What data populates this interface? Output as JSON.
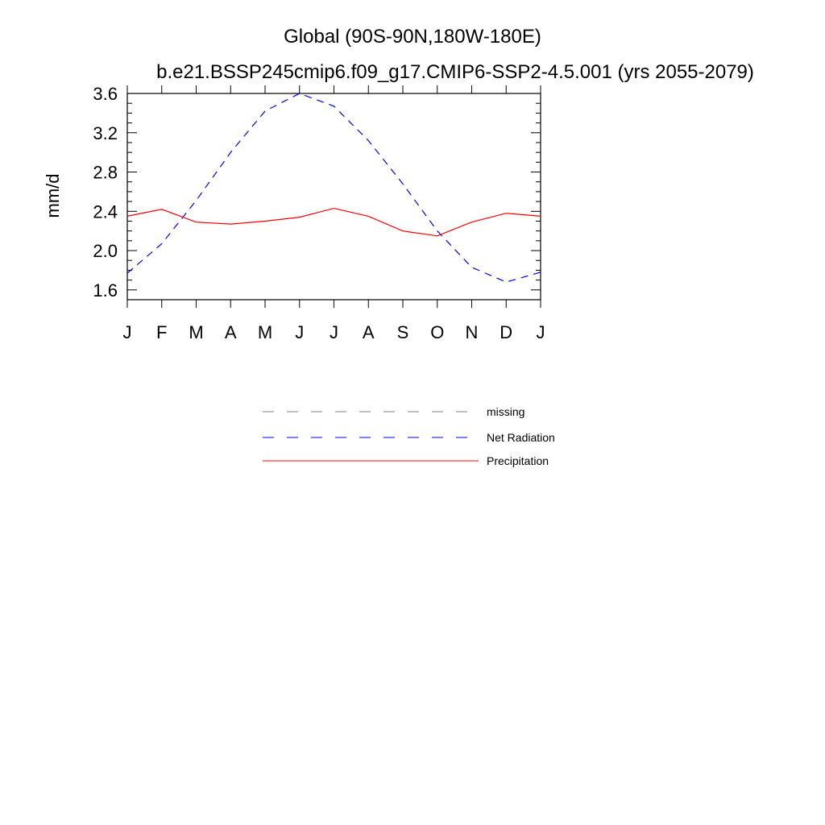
{
  "chart_data": {
    "type": "line",
    "title": "Global (90S-90N,180W-180E)",
    "subtitle": "b.e21.BSSP245cmip6.f09_g17.CMIP6-SSP2-4.5.001 (yrs 2055-2079)",
    "xlabel": "",
    "ylabel": "mm/d",
    "categories": [
      "J",
      "F",
      "M",
      "A",
      "M",
      "J",
      "J",
      "A",
      "S",
      "O",
      "N",
      "D",
      "J"
    ],
    "ylim": [
      1.5,
      3.6
    ],
    "yticks": [
      "1.6",
      "2.0",
      "2.4",
      "2.8",
      "3.2",
      "3.6"
    ],
    "grid": false,
    "legend_position": "bottom",
    "series": [
      {
        "name": "Net Radiation",
        "color": "#0000ff",
        "style": "dashed",
        "values": [
          1.77,
          2.07,
          2.51,
          3.0,
          3.42,
          3.6,
          3.47,
          3.12,
          2.68,
          2.2,
          1.83,
          1.68,
          1.78
        ]
      },
      {
        "name": "Precipitation",
        "color": "#ff0000",
        "style": "solid",
        "values": [
          2.35,
          2.42,
          2.29,
          2.27,
          2.3,
          2.34,
          2.43,
          2.35,
          2.2,
          2.15,
          2.29,
          2.38,
          2.35
        ]
      }
    ],
    "legend": [
      {
        "name": "missing",
        "color": "#808080",
        "style": "dashed"
      },
      {
        "name": "Net Radiation",
        "color": "#0000ff",
        "style": "dashed"
      },
      {
        "name": "Precipitation",
        "color": "#ff0000",
        "style": "solid"
      }
    ]
  }
}
